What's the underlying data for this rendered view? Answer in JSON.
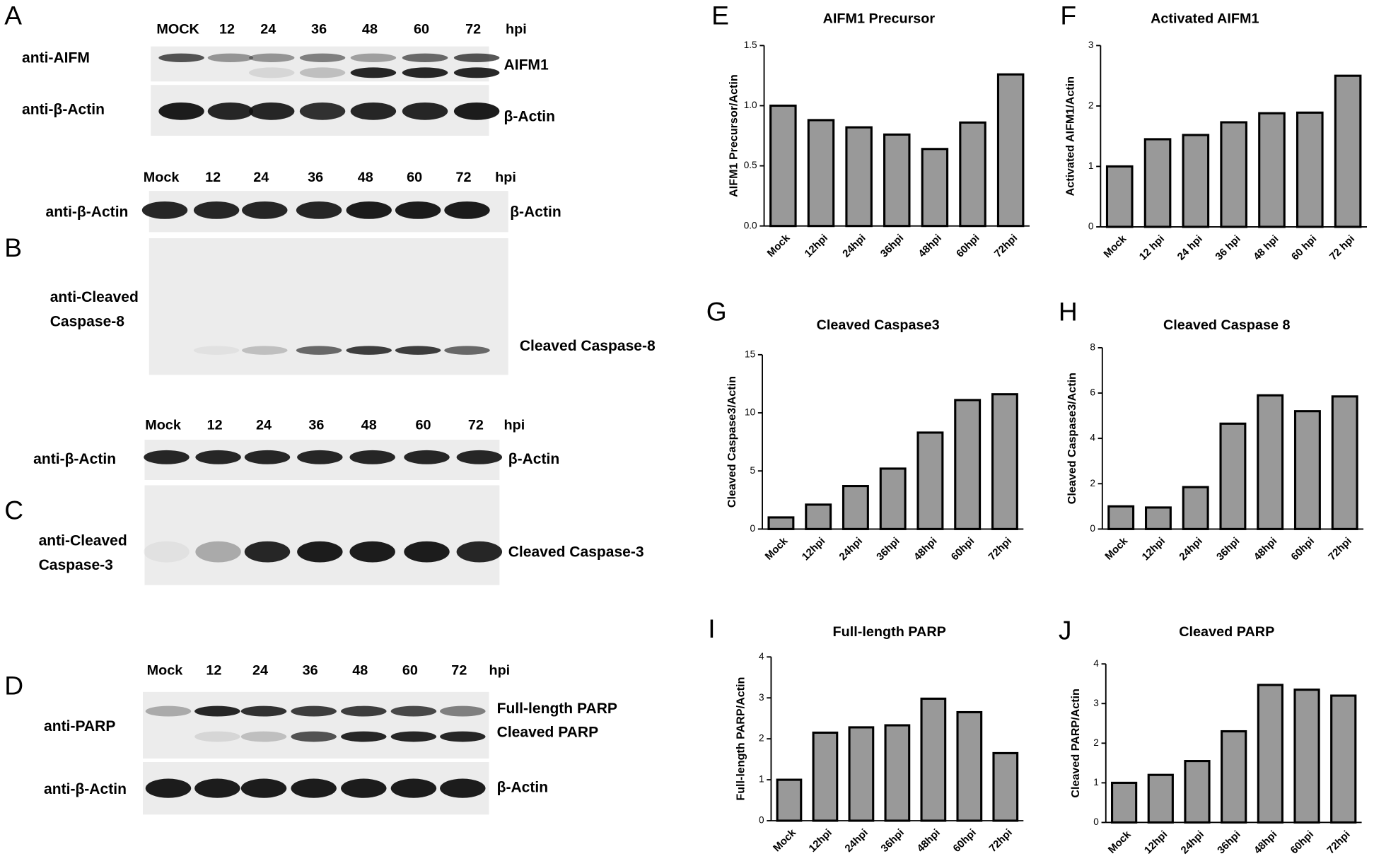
{
  "blots": [
    {
      "letter": "A",
      "lanes": [
        "MOCK",
        "12",
        "24",
        "36",
        "48",
        "60",
        "72"
      ],
      "unit": "hpi",
      "rows": [
        {
          "antibody": [
            "anti-AIFM"
          ],
          "targets": [
            "AIFM1"
          ]
        },
        {
          "antibody": [
            "anti-β-Actin"
          ],
          "targets": [
            "β-Actin"
          ]
        }
      ]
    },
    {
      "letter": "B",
      "lanes": [
        "Mock",
        "12",
        "24",
        "36",
        "48",
        "60",
        "72"
      ],
      "unit": "hpi",
      "rows": [
        {
          "antibody": [
            "anti-β-Actin"
          ],
          "targets": [
            "β-Actin"
          ]
        },
        {
          "antibody": [
            "anti-Cleaved",
            "Caspase-8"
          ],
          "targets": [
            "Cleaved Caspase-8"
          ]
        }
      ]
    },
    {
      "letter": "C",
      "lanes": [
        "Mock",
        "12",
        "24",
        "36",
        "48",
        "60",
        "72"
      ],
      "unit": "hpi",
      "rows": [
        {
          "antibody": [
            "anti-β-Actin"
          ],
          "targets": [
            "β-Actin"
          ]
        },
        {
          "antibody": [
            "anti-Cleaved",
            "Caspase-3"
          ],
          "targets": [
            "Cleaved Caspase-3"
          ]
        }
      ]
    },
    {
      "letter": "D",
      "lanes": [
        "Mock",
        "12",
        "24",
        "36",
        "48",
        "60",
        "72"
      ],
      "unit": "hpi",
      "rows": [
        {
          "antibody": [
            "anti-PARP"
          ],
          "targets": [
            "Full-length PARP",
            "Cleaved PARP"
          ]
        },
        {
          "antibody": [
            "anti-β-Actin"
          ],
          "targets": [
            "β-Actin"
          ]
        }
      ]
    }
  ],
  "chart_data": [
    {
      "type": "bar",
      "letter": "E",
      "title": "AIFM1 Precursor",
      "y_label": "AIFM1 Precursor/Actin",
      "color": "#999999",
      "categories": [
        "Mock",
        "12hpi",
        "24hpi",
        "36hpi",
        "48hpi",
        "60hpi",
        "72hpi"
      ],
      "values": [
        1.0,
        0.88,
        0.82,
        0.76,
        0.64,
        0.86,
        1.26
      ],
      "ylim": [
        0,
        1.5
      ],
      "yticks": [
        {
          "value": 0,
          "label": "0.0"
        },
        0.5,
        {
          "value": 1,
          "label": "1.0"
        },
        1.5
      ]
    },
    {
      "type": "bar",
      "letter": "F",
      "title": "Activated AIFM1",
      "y_label": "Activated AIFM1/Actin",
      "color": "#999999",
      "categories": [
        "Mock",
        "12 hpi",
        "24 hpi",
        "36 hpi",
        "48 hpi",
        "60 hpi",
        "72 hpi"
      ],
      "values": [
        1.0,
        1.45,
        1.52,
        1.73,
        1.88,
        1.89,
        2.5
      ],
      "ylim": [
        0,
        3
      ],
      "yticks": [
        0,
        1,
        2,
        3
      ]
    },
    {
      "type": "bar",
      "letter": "G",
      "title": "Cleaved Caspase3",
      "y_label": "Cleaved Caspase3/Actin",
      "color": "#999999",
      "categories": [
        "Mock",
        "12hpi",
        "24hpi",
        "36hpi",
        "48hpi",
        "60hpi",
        "72hpi"
      ],
      "values": [
        1.0,
        2.1,
        3.7,
        5.2,
        8.3,
        11.1,
        11.6
      ],
      "ylim": [
        0,
        15
      ],
      "yticks": [
        0,
        5,
        10,
        15
      ]
    },
    {
      "type": "bar",
      "letter": "H",
      "title": "Cleaved Caspase 8",
      "y_label": "Cleaved Caspase3/Actin",
      "color": "#999999",
      "categories": [
        "Mock",
        "12hpi",
        "24hpi",
        "36hpi",
        "48hpi",
        "60hpi",
        "72hpi"
      ],
      "values": [
        1.0,
        0.95,
        1.85,
        4.65,
        5.9,
        5.2,
        5.85
      ],
      "ylim": [
        0,
        8
      ],
      "yticks": [
        0,
        2,
        4,
        6,
        8
      ]
    },
    {
      "type": "bar",
      "letter": "I",
      "title": "Full-length PARP",
      "y_label": "Full-length PARP/Actin",
      "color": "#999999",
      "categories": [
        "Mock",
        "12hpi",
        "24hpi",
        "36hpi",
        "48hpi",
        "60hpi",
        "72hpi"
      ],
      "values": [
        1.0,
        2.15,
        2.28,
        2.33,
        2.98,
        2.65,
        1.65
      ],
      "ylim": [
        0,
        4
      ],
      "yticks": [
        0,
        1,
        2,
        3,
        4
      ]
    },
    {
      "type": "bar",
      "letter": "J",
      "title": "Cleaved PARP",
      "y_label": "Cleaved PARP/Actin",
      "color": "#999999",
      "categories": [
        "Mock",
        "12hpi",
        "24hpi",
        "36hpi",
        "48hpi",
        "60hpi",
        "72hpi"
      ],
      "values": [
        1.0,
        1.2,
        1.55,
        2.3,
        3.47,
        3.35,
        3.2
      ],
      "ylim": [
        0,
        4
      ],
      "yticks": [
        0,
        1,
        2,
        3,
        4
      ]
    }
  ]
}
